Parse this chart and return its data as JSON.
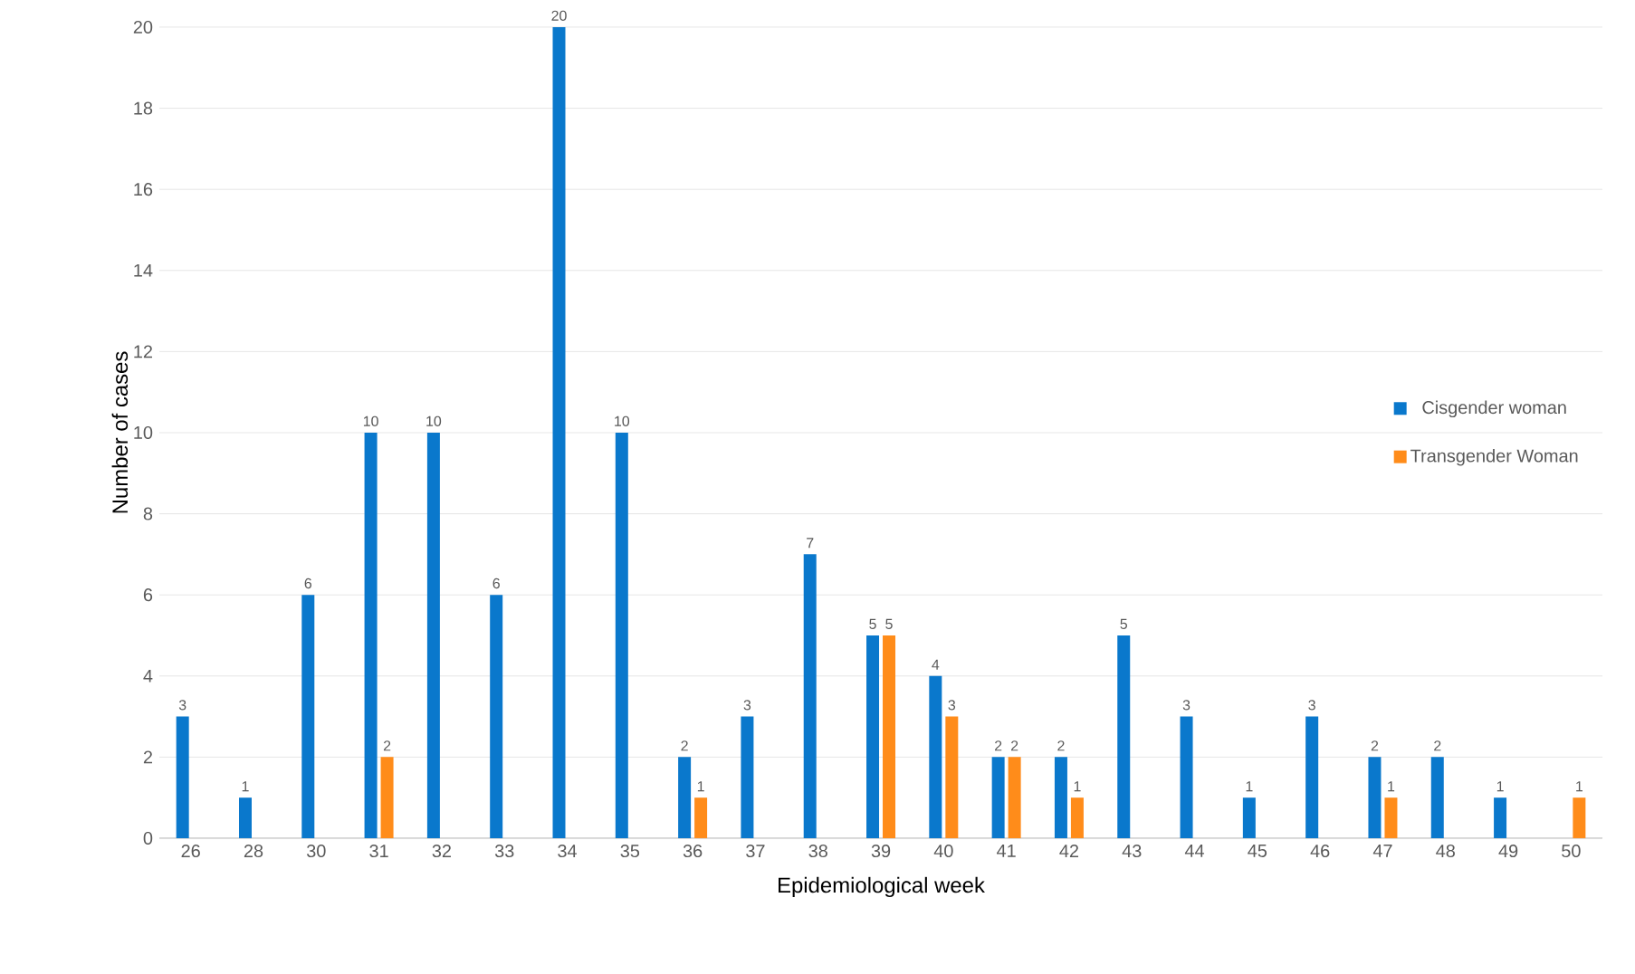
{
  "chart_data": {
    "type": "bar",
    "xlabel": "Epidemiological week",
    "ylabel": "Number of cases",
    "categories": [
      "26",
      "28",
      "30",
      "31",
      "32",
      "33",
      "34",
      "35",
      "36",
      "37",
      "38",
      "39",
      "40",
      "41",
      "42",
      "43",
      "44",
      "45",
      "46",
      "47",
      "48",
      "49",
      "50"
    ],
    "series": [
      {
        "name": "Cisgender woman",
        "color": "#0a78cc",
        "values": [
          3,
          1,
          6,
          10,
          10,
          6,
          20,
          10,
          2,
          3,
          7,
          5,
          4,
          2,
          2,
          5,
          3,
          1,
          3,
          2,
          2,
          1,
          null
        ]
      },
      {
        "name": "Transgender Woman",
        "color": "#ff8c1a",
        "values": [
          null,
          null,
          null,
          2,
          null,
          null,
          null,
          null,
          1,
          null,
          null,
          5,
          3,
          2,
          1,
          null,
          null,
          null,
          null,
          1,
          null,
          null,
          1
        ]
      }
    ],
    "ylim": [
      0,
      20
    ],
    "yticks": [
      0,
      2,
      4,
      6,
      8,
      10,
      12,
      14,
      16,
      18,
      20
    ],
    "grid": "y",
    "legend": "right",
    "data_labels": true
  }
}
